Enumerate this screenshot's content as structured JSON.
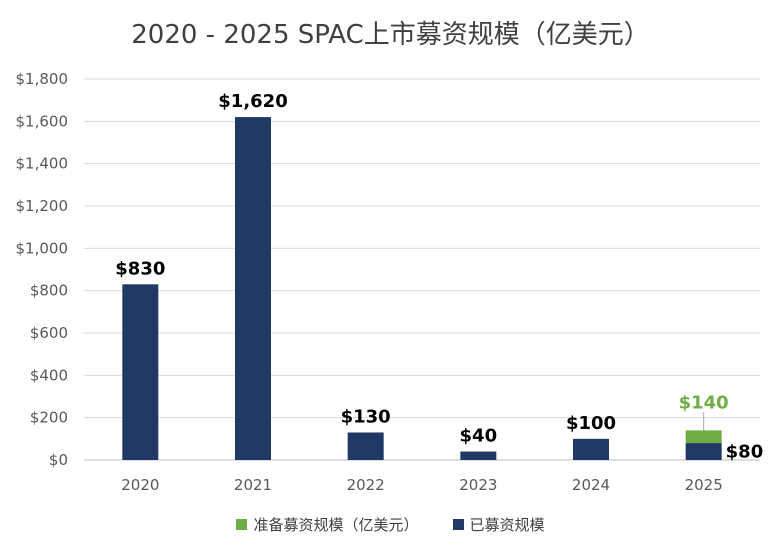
{
  "chart_data": {
    "type": "bar",
    "stacked": true,
    "title": "2020 - 2025 SPAC上市募资规模（亿美元）",
    "categories": [
      "2020",
      "2021",
      "2022",
      "2023",
      "2024",
      "2025"
    ],
    "series": [
      {
        "name": "已募资规模",
        "values": [
          830,
          1620,
          130,
          40,
          100,
          80
        ],
        "color": "#1f3864"
      },
      {
        "name": "准备募资规模（亿美元）",
        "values": [
          0,
          0,
          0,
          0,
          0,
          60
        ],
        "color": "#70ad47"
      }
    ],
    "data_labels": {
      "totals": [
        "$830",
        "$1,620",
        "$130",
        "$40",
        "$100",
        "$140"
      ],
      "raised_2025": "$80"
    },
    "y_ticks": [
      "$0",
      "$200",
      "$400",
      "$600",
      "$800",
      "$1,000",
      "$1,200",
      "$1,400",
      "$1,600",
      "$1,800"
    ],
    "ylim": [
      0,
      1800
    ],
    "grid": true,
    "legend_position": "bottom",
    "xlabel": "",
    "ylabel": ""
  }
}
